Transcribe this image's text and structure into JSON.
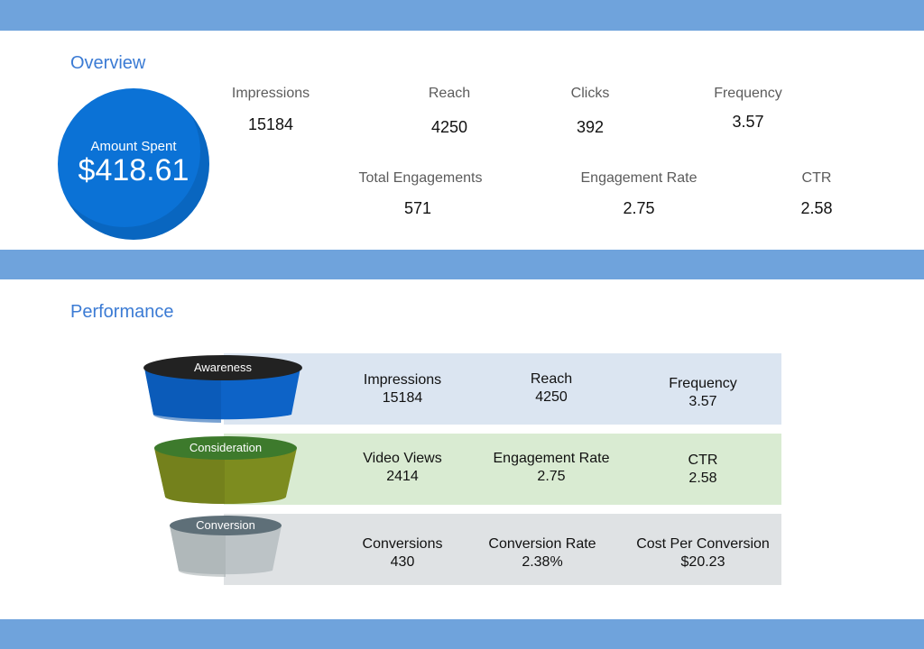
{
  "colors": {
    "band": "#6fa3dc",
    "section_title": "#3b7bd4",
    "spend_circle": "#0b72d6",
    "awareness_band": "#dbe5f1",
    "consideration_band": "#d9ebd2",
    "conversion_band": "#dfe2e4"
  },
  "overview": {
    "title": "Overview",
    "amount_spent": {
      "label": "Amount Spent",
      "value": "$418.61"
    },
    "metrics_row1": [
      {
        "label": "Impressions",
        "value": "15184"
      },
      {
        "label": "Reach",
        "value": "4250"
      },
      {
        "label": "Clicks",
        "value": "392"
      },
      {
        "label": "Frequency",
        "value": "3.57"
      }
    ],
    "metrics_row2": [
      {
        "label": "Total Engagements",
        "value": "571"
      },
      {
        "label": "Engagement Rate",
        "value": "2.75"
      },
      {
        "label": "CTR",
        "value": "2.58"
      }
    ]
  },
  "performance": {
    "title": "Performance",
    "stages": [
      {
        "name": "Awareness",
        "metrics": [
          {
            "label": "Impressions",
            "value": "15184"
          },
          {
            "label": "Reach",
            "value": "4250"
          },
          {
            "label": "Frequency",
            "value": "3.57"
          }
        ]
      },
      {
        "name": "Consideration",
        "metrics": [
          {
            "label": "Video Views",
            "value": "2414"
          },
          {
            "label": "Engagement Rate",
            "value": "2.75"
          },
          {
            "label": "CTR",
            "value": "2.58"
          }
        ]
      },
      {
        "name": "Conversion",
        "metrics": [
          {
            "label": "Conversions",
            "value": "430"
          },
          {
            "label": "Conversion Rate",
            "value": "2.38%"
          },
          {
            "label": "Cost Per Conversion",
            "value": "$20.23"
          }
        ]
      }
    ]
  }
}
